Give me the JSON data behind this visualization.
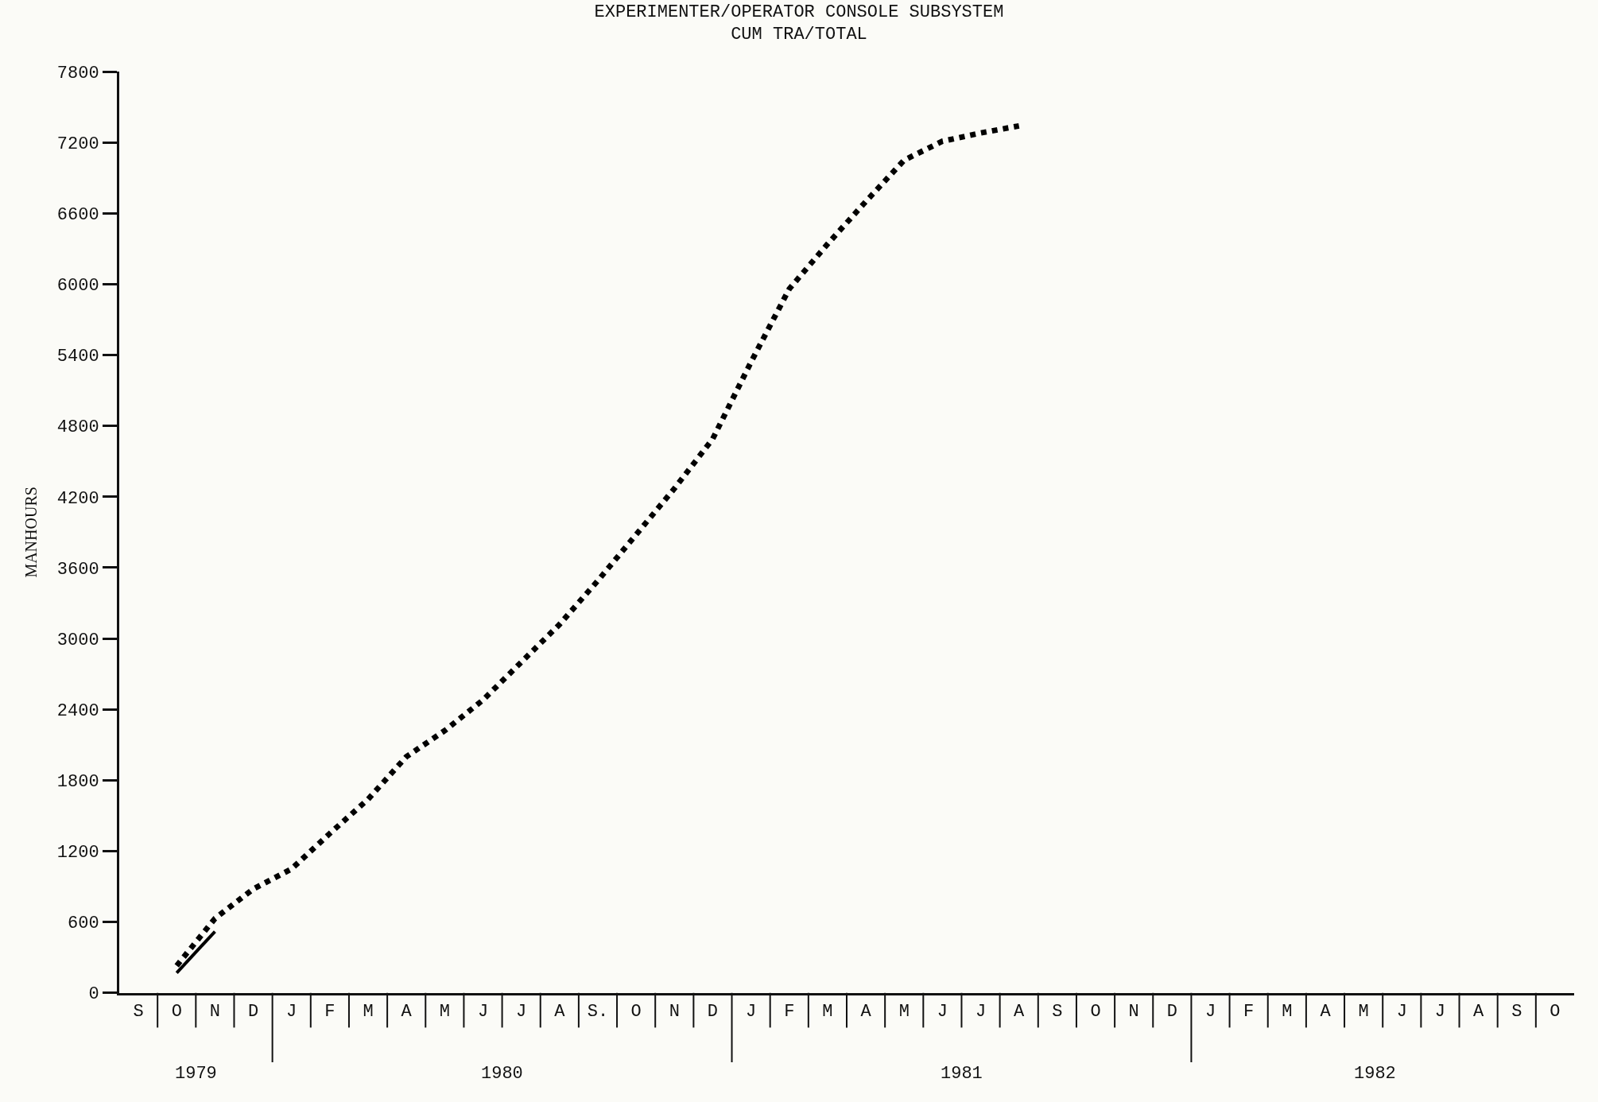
{
  "chart_data": {
    "type": "line",
    "title": "EXPERIMENTER/OPERATOR CONSOLE SUBSYSTEM",
    "subtitle": "CUM TRA/TOTAL",
    "ylabel": "MANHOURS",
    "categories": [
      "S",
      "O",
      "N",
      "D",
      "J",
      "F",
      "M",
      "A",
      "M",
      "J",
      "J",
      "A",
      "S.",
      "O",
      "N",
      "D",
      "J",
      "F",
      "M",
      "A",
      "M",
      "J",
      "J",
      "A",
      "S",
      "O",
      "N",
      "D",
      "J",
      "F",
      "M",
      "A",
      "M",
      "J",
      "J",
      "A",
      "S",
      "O"
    ],
    "series": [
      {
        "color": "#000000",
        "line_style": "dotted",
        "values": [
          null,
          230,
          630,
          880,
          1050,
          1350,
          1640,
          2000,
          2220,
          2480,
          2800,
          3120,
          3490,
          3880,
          4270,
          4690,
          5340,
          5960,
          6340,
          6700,
          7050,
          7210,
          7280,
          7340,
          null,
          null,
          null,
          null,
          null,
          null,
          null,
          null,
          null,
          null,
          null,
          null,
          null,
          null
        ]
      },
      {
        "color": "#000000",
        "line_style": "solid",
        "values": [
          null,
          170,
          520,
          null,
          null,
          null,
          null,
          null,
          null,
          null,
          null,
          null,
          null,
          null,
          null,
          null,
          null,
          null,
          null,
          null,
          null,
          null,
          null,
          null,
          null,
          null,
          null,
          null,
          null,
          null,
          null,
          null,
          null,
          null,
          null,
          null,
          null,
          null
        ]
      }
    ],
    "marker": "none",
    "grid": false,
    "ylim": [
      0,
      7800
    ],
    "yticks": [
      0,
      600,
      1200,
      1800,
      2400,
      3000,
      3600,
      4200,
      4800,
      5400,
      6000,
      6600,
      7200,
      7800
    ],
    "annotations": [
      "1979",
      "1980",
      "1981",
      "1982"
    ]
  }
}
